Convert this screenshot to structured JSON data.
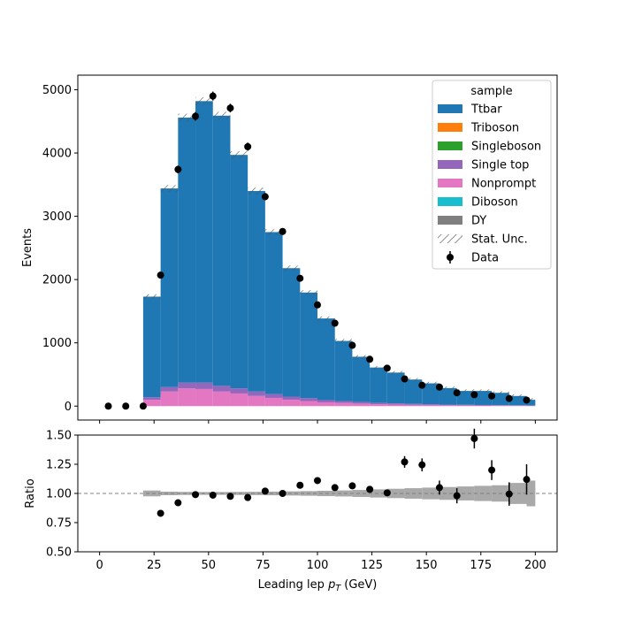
{
  "chart_data": [
    {
      "type": "stacked-histogram",
      "ylabel": "Events",
      "xlim": [
        -10,
        210
      ],
      "ylim": [
        -220,
        5230
      ],
      "yticks": [
        0,
        1000,
        2000,
        3000,
        4000,
        5000
      ],
      "bin_width": 8,
      "bin_edges": [
        20,
        28,
        36,
        44,
        52,
        60,
        68,
        76,
        84,
        92,
        100,
        108,
        116,
        124,
        132,
        140,
        148,
        156,
        164,
        172,
        180,
        188,
        196,
        200
      ],
      "legend": {
        "title": "sample",
        "position": "upper right",
        "entries": [
          "Ttbar",
          "Triboson",
          "Singleboson",
          "Single top",
          "Nonprompt",
          "Diboson",
          "DY",
          "Stat. Unc.",
          "Data"
        ]
      },
      "colors": {
        "Ttbar": "#1f77b4",
        "Triboson": "#ff7f0e",
        "Singleboson": "#2ca02c",
        "Single top": "#9467bd",
        "Nonprompt": "#e377c2",
        "Diboson": "#17becf",
        "DY": "#7f7f7f"
      },
      "series": [
        {
          "name": "Nonprompt",
          "values": [
            100,
            230,
            280,
            270,
            230,
            200,
            160,
            130,
            100,
            80,
            60,
            50,
            40,
            30,
            25,
            20,
            18,
            14,
            12,
            10,
            8,
            7,
            6
          ]
        },
        {
          "name": "Single top",
          "values": [
            40,
            70,
            90,
            100,
            90,
            80,
            70,
            60,
            50,
            45,
            35,
            30,
            25,
            20,
            18,
            15,
            12,
            10,
            9,
            8,
            7,
            6,
            5
          ]
        },
        {
          "name": "Ttbar",
          "values": [
            1590,
            3140,
            4190,
            4450,
            4270,
            3690,
            3170,
            2560,
            2030,
            1670,
            1290,
            950,
            715,
            560,
            487,
            385,
            330,
            261,
            219,
            222,
            195,
            147,
            89
          ]
        }
      ],
      "totals": [
        1730,
        3440,
        4560,
        4820,
        4590,
        3970,
        3400,
        2750,
        2180,
        1795,
        1385,
        1030,
        780,
        610,
        530,
        420,
        360,
        285,
        240,
        240,
        210,
        160,
        100
      ],
      "data": {
        "x": [
          4,
          12,
          20,
          28,
          36,
          44,
          52,
          60,
          68,
          76,
          84,
          92,
          100,
          108,
          116,
          124,
          132,
          140,
          148,
          156,
          164,
          172,
          180,
          188,
          196
        ],
        "y": [
          0,
          0,
          0,
          2070,
          3740,
          4580,
          4900,
          4710,
          4100,
          3310,
          2760,
          2020,
          1600,
          1310,
          960,
          740,
          600,
          430,
          330,
          300,
          210,
          180,
          160,
          120,
          95
        ]
      }
    },
    {
      "type": "ratio",
      "xlabel": "Leading lep $p_T$ (GeV)",
      "ylabel": "Ratio",
      "ylim": [
        0.5,
        1.5
      ],
      "yticks": [
        "0.50",
        "0.75",
        "1.00",
        "1.25",
        "1.50"
      ],
      "xticks": [
        0,
        25,
        50,
        75,
        100,
        125,
        150,
        175,
        200
      ],
      "reference_line": 1.0,
      "unc_band": [
        0.025,
        0.015,
        0.013,
        0.012,
        0.012,
        0.013,
        0.014,
        0.016,
        0.018,
        0.02,
        0.023,
        0.026,
        0.03,
        0.035,
        0.04,
        0.045,
        0.05,
        0.055,
        0.06,
        0.065,
        0.07,
        0.09,
        0.11
      ],
      "points": {
        "x": [
          28,
          36,
          44,
          52,
          60,
          68,
          76,
          84,
          92,
          100,
          108,
          116,
          124,
          132,
          140,
          148,
          156,
          164,
          172,
          180,
          188,
          196
        ],
        "y": [
          0.83,
          0.92,
          0.99,
          0.985,
          0.975,
          0.965,
          1.02,
          1.0,
          1.07,
          1.11,
          1.05,
          1.065,
          1.035,
          1.005,
          1.27,
          1.245,
          1.05,
          0.98,
          1.47,
          1.2,
          0.995,
          1.12
        ],
        "err": [
          0.008,
          0.006,
          0.005,
          0.005,
          0.005,
          0.006,
          0.007,
          0.008,
          0.01,
          0.012,
          0.015,
          0.018,
          0.022,
          0.027,
          0.05,
          0.055,
          0.06,
          0.065,
          0.085,
          0.085,
          0.1,
          0.13
        ]
      }
    }
  ]
}
